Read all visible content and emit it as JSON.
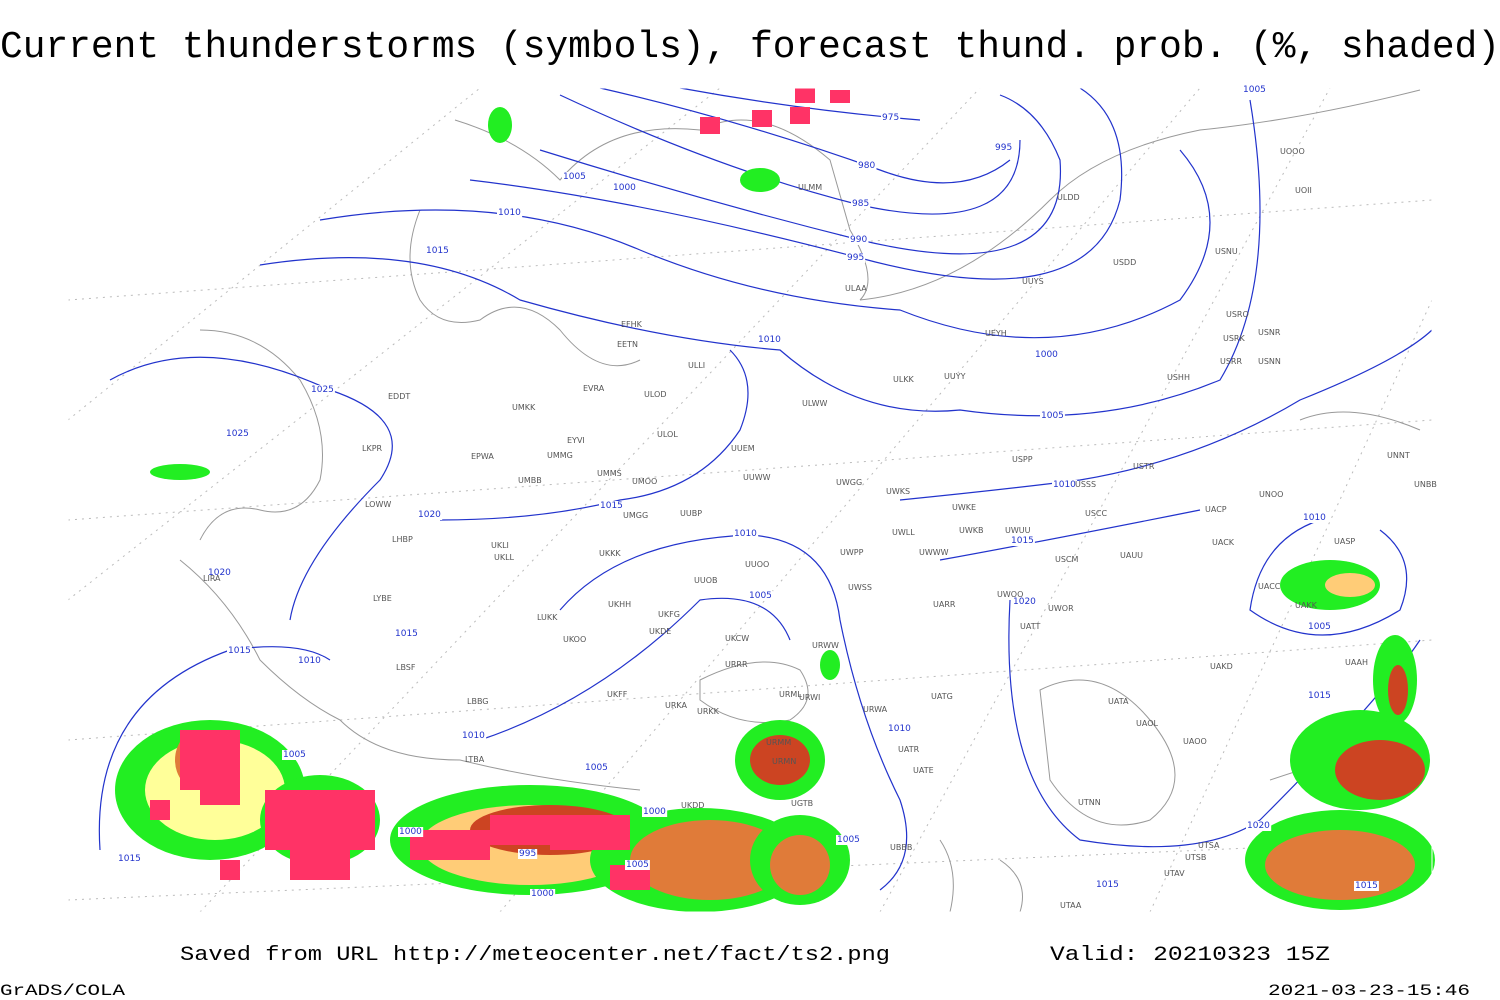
{
  "header": {
    "title": "Current thunderstorms (symbols), forecast thund. prob. (%, shaded)"
  },
  "isobar_labels": [
    "975",
    "980",
    "985",
    "990",
    "995",
    "995",
    "1005",
    "1000",
    "1010",
    "1015",
    "1010",
    "1000",
    "1025",
    "1025",
    "1005",
    "1010",
    "1015",
    "1020",
    "1010",
    "1015",
    "1010",
    "1020",
    "1005",
    "1020",
    "1005",
    "1015",
    "1015",
    "1010",
    "1015",
    "1010",
    "1010",
    "1005",
    "1005",
    "1000",
    "1000",
    "995",
    "1005",
    "1005",
    "1000",
    "1020",
    "1015",
    "1015",
    "1015",
    "1005"
  ],
  "stations": [
    "ULDD",
    "UUYS",
    "USDD",
    "USNU",
    "USRO",
    "USRK",
    "USNR",
    "USRR",
    "USNN",
    "UEYH",
    "USHH",
    "UUYY",
    "ULKK",
    "ULWW",
    "UUEM",
    "UUWW",
    "UWGG",
    "UWKS",
    "USPP",
    "USTR",
    "USSS",
    "UNOO",
    "UNNT",
    "UNBB",
    "USCC",
    "UACP",
    "UACK",
    "UASP",
    "UWKE",
    "UWKB",
    "UWUU",
    "UWLL",
    "UWWW",
    "USCM",
    "UAUU",
    "UWPP",
    "UWSS",
    "UARR",
    "UWOO",
    "UWOR",
    "UATT",
    "UAKD",
    "UAAH",
    "UATA",
    "UAOL",
    "UAOO",
    "UTNN",
    "UTSA",
    "UTSB",
    "UTAV",
    "UTAA",
    "UATG",
    "UATR",
    "UATE",
    "URWA",
    "URWI",
    "URMM",
    "URMN",
    "UGTB",
    "UBBB",
    "EDDT",
    "EPWA",
    "LKPR",
    "LOWW",
    "LHBP",
    "LIRA",
    "LYBE",
    "LBSF",
    "LBBG",
    "LTBA",
    "UKLL",
    "UKLI",
    "UKKK",
    "UKHH",
    "UKDE",
    "UKOO",
    "LUKK",
    "UKFF",
    "URKA",
    "URKK",
    "UUOB",
    "UUOO",
    "UKCW",
    "URRR",
    "UMMS",
    "UMOO",
    "UMBB",
    "UMMG",
    "UMKK",
    "EYVI",
    "EVRA",
    "EETN",
    "EFHK",
    "ULLI",
    "ULOD",
    "ULOL",
    "UUBP",
    "UMGG",
    "ULAA",
    "ULMM",
    "UOOO",
    "UOII",
    "UACC",
    "UAKK",
    "UKFG",
    "UKDD",
    "URWW",
    "URML"
  ],
  "footer": {
    "source": "Saved from URL  http://meteocenter.net/fact/ts2.png",
    "valid": "Valid: 20210323 15Z",
    "software": "GrADS/COLA",
    "timestamp": "2021-03-23-15:46"
  }
}
